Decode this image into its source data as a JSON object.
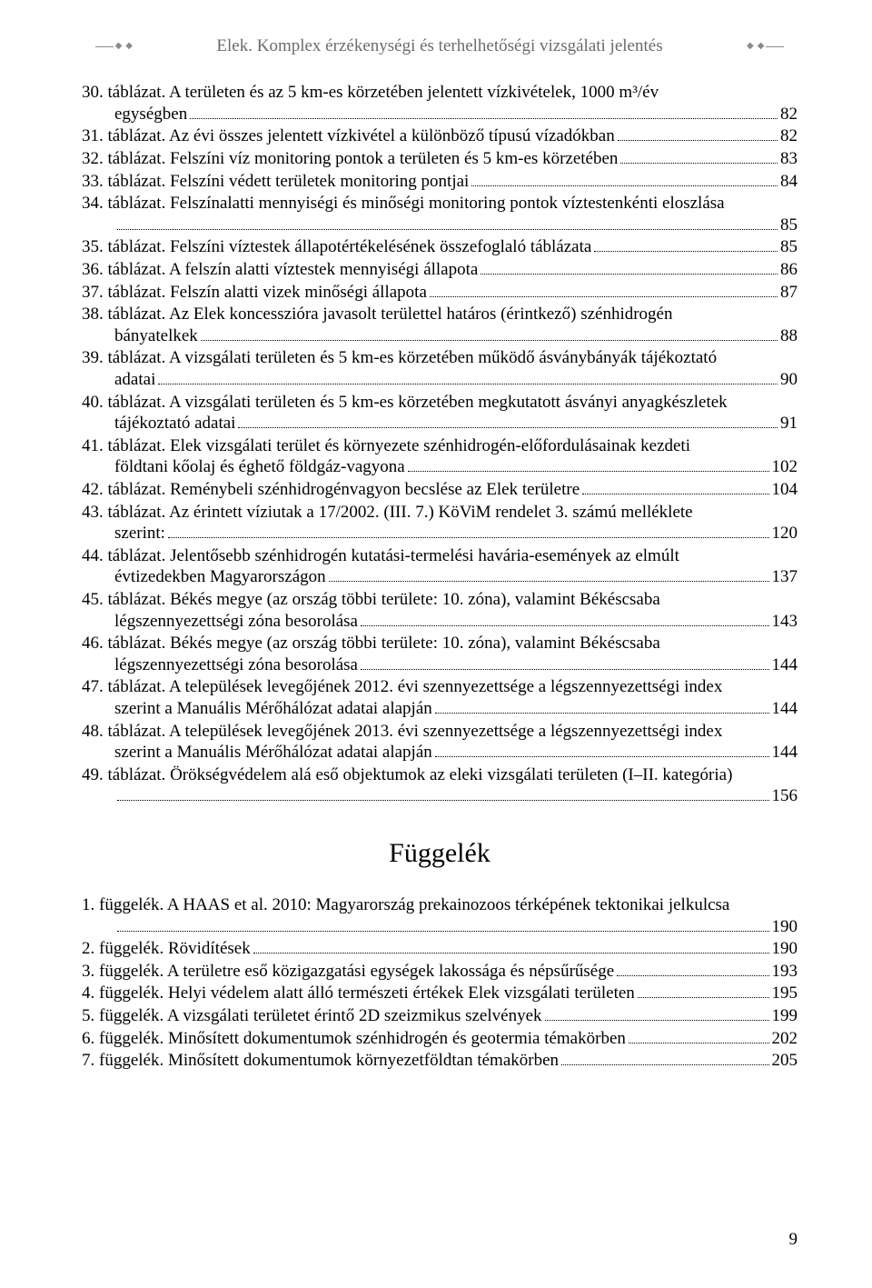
{
  "header": {
    "title": "Elek. Komplex érzékenységi és terhelhetőségi vizsgálati jelentés"
  },
  "toc": [
    {
      "lines": [
        "30. táblázat. A területen és az 5 km-es körzetében jelentett vízkivételek, 1000 m³/év",
        "egységben"
      ],
      "page": "82"
    },
    {
      "lines": [
        "31. táblázat. Az évi összes jelentett vízkivétel a különböző típusú vízadókban"
      ],
      "page": "82"
    },
    {
      "lines": [
        "32. táblázat. Felszíni víz monitoring pontok a területen és 5 km-es körzetében"
      ],
      "page": "83"
    },
    {
      "lines": [
        "33. táblázat. Felszíni védett területek monitoring pontjai"
      ],
      "page": "84"
    },
    {
      "lines": [
        "34. táblázat. Felszínalatti mennyiségi és minőségi monitoring pontok víztestenkénti eloszlása",
        ""
      ],
      "page": "85"
    },
    {
      "lines": [
        "35. táblázat. Felszíni víztestek állapotértékelésének összefoglaló táblázata"
      ],
      "page": "85"
    },
    {
      "lines": [
        "36. táblázat. A felszín alatti víztestek mennyiségi állapota"
      ],
      "page": "86"
    },
    {
      "lines": [
        "37. táblázat. Felszín alatti vizek minőségi állapota"
      ],
      "page": "87"
    },
    {
      "lines": [
        "38. táblázat. Az Elek koncesszióra javasolt területtel határos (érintkező) szénhidrogén",
        "bányatelkek"
      ],
      "page": "88"
    },
    {
      "lines": [
        "39. táblázat. A vizsgálati területen és 5 km-es körzetében működő ásványbányák tájékoztató",
        "adatai"
      ],
      "page": "90"
    },
    {
      "lines": [
        "40. táblázat. A vizsgálati területen és 5 km-es körzetében megkutatott ásványi anyagkészletek",
        "tájékoztató adatai"
      ],
      "page": "91"
    },
    {
      "lines": [
        "41. táblázat. Elek vizsgálati terület és környezete szénhidrogén-előfordulásainak kezdeti",
        "földtani kőolaj és éghető földgáz-vagyona"
      ],
      "page": "102"
    },
    {
      "lines": [
        "42. táblázat. Reménybeli szénhidrogénvagyon becslése az Elek területre"
      ],
      "page": "104"
    },
    {
      "lines": [
        "43. táblázat. Az érintett víziutak a 17/2002. (III. 7.) KöViM rendelet 3. számú melléklete",
        "szerint:"
      ],
      "page": "120"
    },
    {
      "lines": [
        "44. táblázat. Jelentősebb szénhidrogén kutatási-termelési havária-események az elmúlt",
        "évtizedekben Magyarországon"
      ],
      "page": "137"
    },
    {
      "lines": [
        "45. táblázat. Békés megye (az ország többi területe: 10. zóna), valamint Békéscsaba",
        "légszennyezettségi zóna besorolása"
      ],
      "page": "143"
    },
    {
      "lines": [
        "46. táblázat. Békés megye (az ország többi területe: 10. zóna), valamint Békéscsaba",
        "légszennyezettségi zóna besorolása"
      ],
      "page": "144"
    },
    {
      "lines": [
        "47. táblázat. A települések levegőjének 2012. évi szennyezettsége a légszennyezettségi index",
        "szerint a Manuális Mérőhálózat adatai alapján"
      ],
      "page": "144"
    },
    {
      "lines": [
        "48. táblázat. A települések levegőjének 2013. évi szennyezettsége a légszennyezettségi index",
        "szerint a Manuális Mérőhálózat adatai alapján"
      ],
      "page": "144"
    },
    {
      "lines": [
        "49. táblázat. Örökségvédelem alá eső objektumok az eleki vizsgálati területen (I–II. kategória)",
        ""
      ],
      "page": "156"
    }
  ],
  "appendix_title": "Függelék",
  "appendix": [
    {
      "lines": [
        "1. függelék. A HAAS et al. 2010: Magyarország prekainozoos térképének tektonikai jelkulcsa",
        ""
      ],
      "page": "190"
    },
    {
      "lines": [
        "2. függelék. Rövidítések"
      ],
      "page": "190"
    },
    {
      "lines": [
        "3. függelék. A területre eső közigazgatási egységek lakossága és népsűrűsége"
      ],
      "page": "193"
    },
    {
      "lines": [
        "4. függelék. Helyi védelem alatt álló természeti értékek Elek vizsgálati területen"
      ],
      "page": "195"
    },
    {
      "lines": [
        "5. függelék. A vizsgálati területet érintő 2D szeizmikus szelvények"
      ],
      "page": "199"
    },
    {
      "lines": [
        "6. függelék. Minősített dokumentumok szénhidrogén és geotermia témakörben"
      ],
      "page": "202"
    },
    {
      "lines": [
        "7. függelék. Minősített dokumentumok környezetföldtan témakörben"
      ],
      "page": "205"
    }
  ],
  "page_number": "9"
}
